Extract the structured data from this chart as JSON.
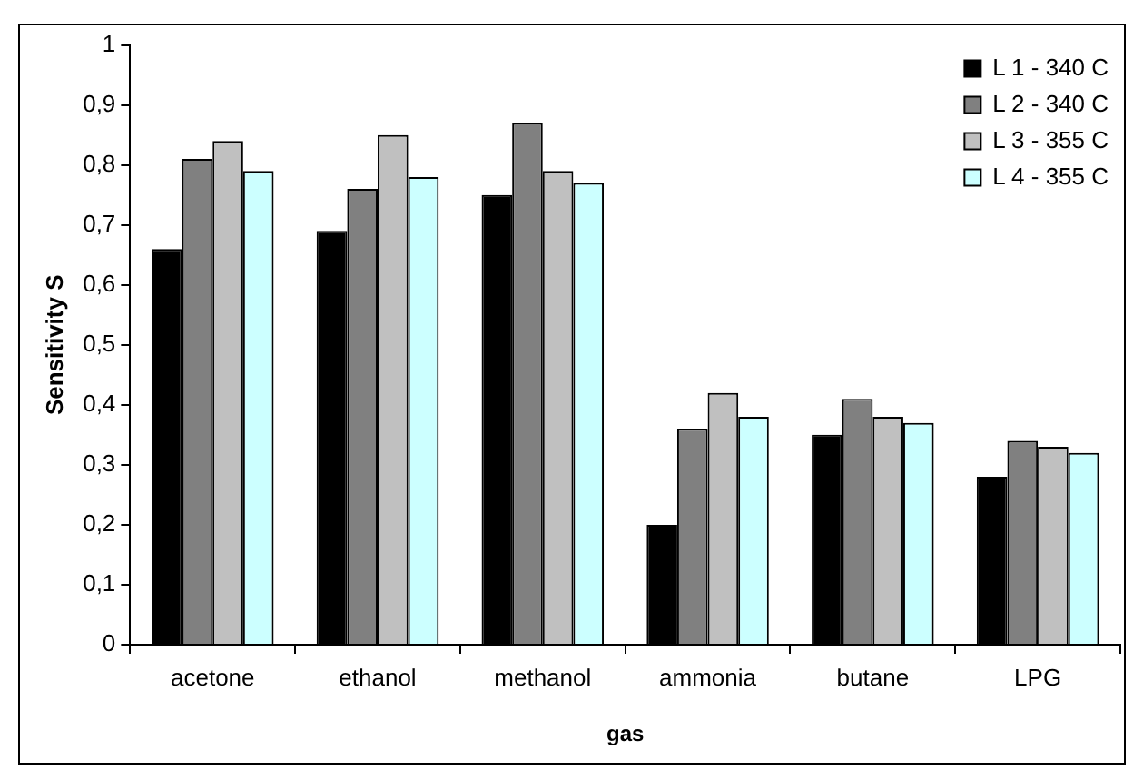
{
  "chart_data": {
    "type": "bar",
    "xlabel": "gas",
    "ylabel": "Sensitivity S",
    "categories": [
      "acetone",
      "ethanol",
      "methanol",
      "ammonia",
      "butane",
      "LPG"
    ],
    "series": [
      {
        "name": "L 1 - 340 C",
        "color": "#000000",
        "values": [
          0.66,
          0.69,
          0.75,
          0.2,
          0.35,
          0.28
        ]
      },
      {
        "name": "L 2 - 340 C",
        "color": "#808080",
        "values": [
          0.81,
          0.76,
          0.87,
          0.36,
          0.41,
          0.34
        ]
      },
      {
        "name": "L 3 - 355 C",
        "color": "#c0c0c0",
        "values": [
          0.84,
          0.85,
          0.79,
          0.42,
          0.38,
          0.33
        ]
      },
      {
        "name": "L 4 - 355 C",
        "color": "#ccffff",
        "values": [
          0.79,
          0.78,
          0.77,
          0.38,
          0.37,
          0.32
        ]
      }
    ],
    "ylim": [
      0,
      1
    ],
    "yticks": [
      0,
      {
        "value": 0.1,
        "label": "0,1"
      },
      {
        "value": 0.2,
        "label": "0,2"
      },
      {
        "value": 0.3,
        "label": "0,3"
      },
      {
        "value": 0.4,
        "label": "0,4"
      },
      {
        "value": 0.5,
        "label": "0,5"
      },
      {
        "value": 0.6,
        "label": "0,6"
      },
      {
        "value": 0.7,
        "label": "0,7"
      },
      {
        "value": 0.8,
        "label": "0,8"
      },
      {
        "value": 0.9,
        "label": "0,9"
      },
      1
    ],
    "grid": false,
    "legend": "top right"
  }
}
